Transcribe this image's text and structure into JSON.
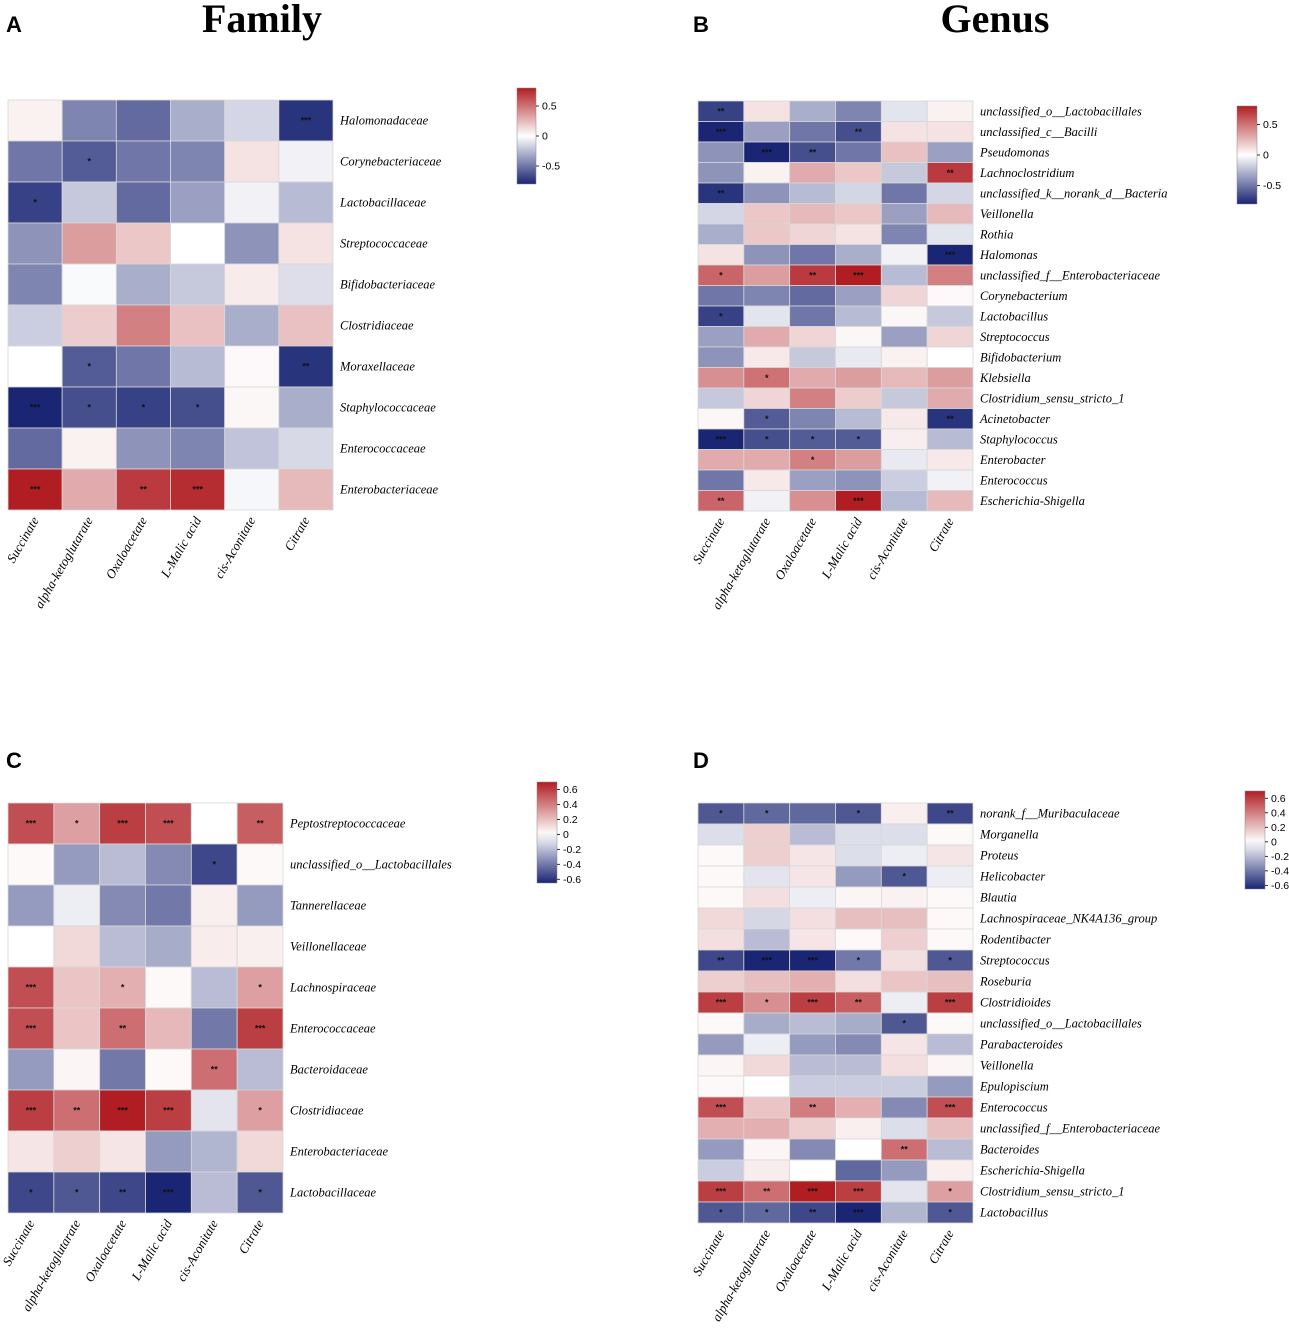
{
  "palette": {
    "low": "#1a2673",
    "mid": "#ffffff",
    "high": "#b01e23",
    "grid": "#d7d7d7"
  },
  "chart_data": [
    {
      "type": "heatmap",
      "panel": "A",
      "title": "Family",
      "columns": [
        "Succinate",
        "alpha-ketoglutarate",
        "Oxaloacetate",
        "L-Malic acid",
        "cis-Aconitate",
        "Citrate"
      ],
      "rows": [
        "Halomonadaceae",
        "Corynebacteriaceae",
        "Lactobacillaceae",
        "Streptococcaceae",
        "Bifidobacteriaceae",
        "Clostridiaceae",
        "Moraxellaceae",
        "Staphylococcaceae",
        "Enterococcaceae",
        "Enterobacteriaceae"
      ],
      "values": [
        [
          0.05,
          -0.45,
          -0.55,
          -0.3,
          -0.15,
          -0.75
        ],
        [
          -0.5,
          -0.6,
          -0.5,
          -0.45,
          0.1,
          -0.05
        ],
        [
          -0.7,
          -0.2,
          -0.55,
          -0.35,
          -0.05,
          -0.25
        ],
        [
          -0.4,
          0.35,
          0.2,
          0.0,
          -0.4,
          0.1
        ],
        [
          -0.45,
          -0.02,
          -0.3,
          -0.2,
          0.07,
          -0.12
        ],
        [
          -0.18,
          0.18,
          0.45,
          0.22,
          -0.3,
          0.22
        ],
        [
          0.0,
          -0.6,
          -0.5,
          -0.25,
          0.02,
          -0.75
        ],
        [
          -0.8,
          -0.65,
          -0.7,
          -0.65,
          0.03,
          -0.3
        ],
        [
          -0.55,
          0.05,
          -0.4,
          -0.45,
          -0.22,
          -0.14
        ],
        [
          0.8,
          0.3,
          0.7,
          0.75,
          -0.03,
          0.25
        ]
      ],
      "significance": [
        [
          "",
          "",
          "",
          "",
          "",
          "***"
        ],
        [
          "",
          "*",
          "",
          "",
          "",
          ""
        ],
        [
          "*",
          "",
          "",
          "",
          "",
          ""
        ],
        [
          "",
          "",
          "",
          "",
          "",
          ""
        ],
        [
          "",
          "",
          "",
          "",
          "",
          ""
        ],
        [
          "",
          "",
          "",
          "",
          "",
          ""
        ],
        [
          "",
          "*",
          "",
          "",
          "",
          "**"
        ],
        [
          "***",
          "*",
          "*",
          "*",
          "",
          ""
        ],
        [
          "",
          "",
          "",
          "",
          "",
          ""
        ],
        [
          "***",
          "",
          "**",
          "***",
          "",
          ""
        ]
      ],
      "colorbar": {
        "range": [
          -0.8,
          0.8
        ],
        "ticks": [
          "0.5",
          "0",
          "-0.5"
        ],
        "tick_values": [
          0.5,
          0,
          -0.5
        ]
      }
    },
    {
      "type": "heatmap",
      "panel": "B",
      "title": "Genus",
      "columns": [
        "Succinate",
        "alpha-ketoglutarate",
        "Oxaloacetate",
        "L-Malic acid",
        "cis-Aconitate",
        "Citrate"
      ],
      "rows": [
        "unclassified_o__Lactobacillales",
        "unclassified_c__Bacilli",
        "Pseudomonas",
        "Lachnoclostridium",
        "unclassified_k__norank_d__Bacteria",
        "Veillonella",
        "Rothia",
        "Halomonas",
        "unclassified_f__Enterobacteriaceae",
        "Corynebacterium",
        "Lactobacillus",
        "Streptococcus",
        "Bifidobacterium",
        "Klebsiella",
        "Clostridium_sensu_stricto_1",
        "Acinetobacter",
        "Staphylococcus",
        "Enterobacter",
        "Enterococcus",
        "Escherichia-Shigella"
      ],
      "values": [
        [
          -0.7,
          0.1,
          -0.3,
          -0.45,
          -0.1,
          0.05
        ],
        [
          -0.85,
          -0.35,
          -0.5,
          -0.65,
          0.1,
          0.1
        ],
        [
          -0.4,
          -0.8,
          -0.65,
          -0.5,
          0.22,
          -0.35
        ],
        [
          -0.4,
          0.05,
          0.3,
          0.2,
          -0.2,
          0.7
        ],
        [
          -0.75,
          -0.4,
          -0.25,
          -0.15,
          -0.5,
          -0.15
        ],
        [
          -0.15,
          0.2,
          0.25,
          0.2,
          -0.35,
          0.25
        ],
        [
          -0.3,
          0.2,
          0.15,
          0.1,
          -0.45,
          -0.1
        ],
        [
          0.1,
          -0.4,
          -0.5,
          -0.3,
          -0.05,
          -0.8
        ],
        [
          0.55,
          0.35,
          0.7,
          0.8,
          -0.25,
          0.45
        ],
        [
          -0.5,
          -0.45,
          -0.55,
          -0.35,
          0.15,
          0.02
        ],
        [
          -0.7,
          -0.1,
          -0.5,
          -0.25,
          0.03,
          -0.2
        ],
        [
          -0.35,
          0.3,
          0.15,
          0.03,
          -0.35,
          0.15
        ],
        [
          -0.4,
          0.08,
          -0.2,
          -0.08,
          0.05,
          0.0
        ],
        [
          0.4,
          0.5,
          0.3,
          0.35,
          0.25,
          0.35
        ],
        [
          -0.2,
          0.15,
          0.45,
          0.18,
          -0.2,
          0.3
        ],
        [
          0.03,
          -0.6,
          -0.45,
          -0.25,
          0.08,
          -0.75
        ],
        [
          -0.8,
          -0.65,
          -0.6,
          -0.6,
          0.06,
          -0.25
        ],
        [
          0.3,
          0.3,
          0.45,
          0.35,
          -0.08,
          0.08
        ],
        [
          -0.5,
          0.08,
          -0.35,
          -0.4,
          -0.18,
          -0.05
        ],
        [
          0.55,
          -0.05,
          0.4,
          0.85,
          -0.25,
          0.25
        ]
      ],
      "significance": [
        [
          "**",
          "",
          "",
          "",
          "",
          ""
        ],
        [
          "***",
          "",
          "",
          "**",
          "",
          ""
        ],
        [
          "",
          "***",
          "**",
          "",
          "",
          ""
        ],
        [
          "",
          "",
          "",
          "",
          "",
          "**"
        ],
        [
          "**",
          "",
          "",
          "",
          "",
          ""
        ],
        [
          "",
          "",
          "",
          "",
          "",
          ""
        ],
        [
          "",
          "",
          "",
          "",
          "",
          ""
        ],
        [
          "",
          "",
          "",
          "",
          "",
          "***"
        ],
        [
          "*",
          "",
          "**",
          "***",
          "",
          ""
        ],
        [
          "",
          "",
          "",
          "",
          "",
          ""
        ],
        [
          "*",
          "",
          "",
          "",
          "",
          ""
        ],
        [
          "",
          "",
          "",
          "",
          "",
          ""
        ],
        [
          "",
          "",
          "",
          "",
          "",
          ""
        ],
        [
          "",
          "*",
          "",
          "",
          "",
          ""
        ],
        [
          "",
          "",
          "",
          "",
          "",
          ""
        ],
        [
          "",
          "*",
          "",
          "",
          "",
          "**"
        ],
        [
          "***",
          "*",
          "*",
          "*",
          "",
          ""
        ],
        [
          "",
          "",
          "*",
          "",
          "",
          ""
        ],
        [
          "",
          "",
          "",
          "",
          "",
          ""
        ],
        [
          "**",
          "",
          "",
          "***",
          "",
          ""
        ]
      ],
      "colorbar": {
        "range": [
          -0.8,
          0.8
        ],
        "ticks": [
          "0.5",
          "0",
          "-0.5"
        ],
        "tick_values": [
          0.5,
          0,
          -0.5
        ]
      }
    },
    {
      "type": "heatmap",
      "panel": "C",
      "title": "",
      "columns": [
        "Succinate",
        "alpha-ketoglutarate",
        "Oxaloacetate",
        "L-Malic acid",
        "cis-Aconitate",
        "Citrate"
      ],
      "rows": [
        "Peptostreptococcaceae",
        "unclassified_o__Lactobacillales",
        "Tannerellaceae",
        "Veillonellaceae",
        "Lachnospiraceae",
        "Enterococcaceae",
        "Bacteroidaceae",
        "Clostridiaceae",
        "Enterobacteriaceae",
        "Lactobacillaceae"
      ],
      "values": [
        [
          0.55,
          0.3,
          0.6,
          0.55,
          0.0,
          0.5
        ],
        [
          0.02,
          -0.3,
          -0.2,
          -0.35,
          -0.55,
          0.02
        ],
        [
          -0.3,
          -0.05,
          -0.35,
          -0.4,
          0.05,
          -0.3
        ],
        [
          0.0,
          0.12,
          -0.2,
          -0.25,
          0.06,
          0.05
        ],
        [
          0.55,
          0.18,
          0.25,
          0.02,
          -0.2,
          0.3
        ],
        [
          0.55,
          0.18,
          0.45,
          0.22,
          -0.4,
          0.6
        ],
        [
          -0.3,
          0.03,
          -0.4,
          0.02,
          0.45,
          -0.2
        ],
        [
          0.6,
          0.45,
          0.7,
          0.6,
          -0.08,
          0.3
        ],
        [
          0.08,
          0.15,
          0.08,
          -0.3,
          -0.22,
          0.12
        ],
        [
          -0.55,
          -0.5,
          -0.55,
          -0.65,
          -0.2,
          -0.5
        ]
      ],
      "significance": [
        [
          "***",
          "*",
          "***",
          "***",
          "",
          "**"
        ],
        [
          "",
          "",
          "",
          "",
          "*",
          ""
        ],
        [
          "",
          "",
          "",
          "",
          "",
          ""
        ],
        [
          "",
          "",
          "",
          "",
          "",
          ""
        ],
        [
          "***",
          "",
          "*",
          "",
          "",
          "*"
        ],
        [
          "***",
          "",
          "**",
          "",
          "",
          "***"
        ],
        [
          "",
          "",
          "",
          "",
          "**",
          ""
        ],
        [
          "***",
          "**",
          "***",
          "***",
          "",
          "*"
        ],
        [
          "",
          "",
          "",
          "",
          "",
          ""
        ],
        [
          "*",
          "*",
          "**",
          "***",
          "",
          "*"
        ]
      ],
      "colorbar": {
        "range": [
          -0.65,
          0.7
        ],
        "ticks": [
          "0.6",
          "0.4",
          "0.2",
          "0",
          "-0.2",
          "-0.4",
          "-0.6"
        ],
        "tick_values": [
          0.6,
          0.4,
          0.2,
          0,
          -0.2,
          -0.4,
          -0.6
        ]
      }
    },
    {
      "type": "heatmap",
      "panel": "D",
      "title": "",
      "columns": [
        "Succinate",
        "alpha-ketoglutarate",
        "Oxaloacetate",
        "L-Malic acid",
        "cis-Aconitate",
        "Citrate"
      ],
      "rows": [
        "norank_f__Muribaculaceae",
        "Morganella",
        "Proteus",
        "Helicobacter",
        "Blautia",
        "Lachnospiraceae_NK4A136_group",
        "Rodentibacter",
        "Streptococcus",
        "Roseburia",
        "Clostridioides",
        "unclassified_o__Lactobacillales",
        "Parabacteroides",
        "Veillonella",
        "Epulopiscium",
        "Enterococcus",
        "unclassified_f__Enterobacteriaceae",
        "Bacteroides",
        "Escherichia-Shigella",
        "Clostridium_sensu_stricto_1",
        "Lactobacillus"
      ],
      "values": [
        [
          -0.5,
          -0.45,
          -0.45,
          -0.5,
          0.05,
          -0.55
        ],
        [
          -0.1,
          0.15,
          -0.2,
          -0.1,
          -0.1,
          0.02
        ],
        [
          0.02,
          0.15,
          0.08,
          -0.1,
          -0.05,
          0.08
        ],
        [
          0.02,
          -0.08,
          0.08,
          -0.3,
          -0.5,
          -0.05
        ],
        [
          0.02,
          0.1,
          -0.05,
          0.03,
          0.04,
          0.02
        ],
        [
          0.12,
          -0.12,
          0.1,
          0.2,
          0.2,
          0.02
        ],
        [
          0.1,
          -0.2,
          0.08,
          0.02,
          0.15,
          0.02
        ],
        [
          -0.55,
          -0.65,
          -0.65,
          -0.4,
          0.1,
          -0.5
        ],
        [
          0.15,
          0.2,
          0.25,
          0.1,
          0.18,
          0.2
        ],
        [
          0.6,
          0.35,
          0.6,
          0.5,
          -0.05,
          0.6
        ],
        [
          0.02,
          -0.25,
          -0.2,
          -0.25,
          -0.5,
          0.02
        ],
        [
          -0.3,
          -0.05,
          -0.3,
          -0.35,
          0.08,
          -0.2
        ],
        [
          0.03,
          0.12,
          -0.2,
          -0.2,
          0.1,
          0.03
        ],
        [
          0.02,
          0.0,
          -0.15,
          -0.15,
          -0.15,
          -0.3
        ],
        [
          0.55,
          0.18,
          0.4,
          0.25,
          -0.35,
          0.55
        ],
        [
          0.25,
          0.25,
          0.15,
          0.05,
          -0.1,
          0.2
        ],
        [
          -0.3,
          0.03,
          -0.35,
          0.0,
          0.45,
          -0.2
        ],
        [
          -0.15,
          0.06,
          0.0,
          -0.45,
          -0.3,
          0.05
        ],
        [
          0.6,
          0.45,
          0.7,
          0.6,
          -0.08,
          0.3
        ],
        [
          -0.5,
          -0.45,
          -0.55,
          -0.65,
          -0.22,
          -0.5
        ]
      ],
      "significance": [
        [
          "*",
          "*",
          "",
          "*",
          "",
          "**"
        ],
        [
          "",
          "",
          "",
          "",
          "",
          ""
        ],
        [
          "",
          "",
          "",
          "",
          "",
          ""
        ],
        [
          "",
          "",
          "",
          "",
          "*",
          ""
        ],
        [
          "",
          "",
          "",
          "",
          "",
          ""
        ],
        [
          "",
          "",
          "",
          "",
          "",
          ""
        ],
        [
          "",
          "",
          "",
          "",
          "",
          ""
        ],
        [
          "**",
          "***",
          "***",
          "*",
          "",
          "*"
        ],
        [
          "",
          "",
          "",
          "",
          "",
          ""
        ],
        [
          "***",
          "*",
          "***",
          "**",
          "",
          "***"
        ],
        [
          "",
          "",
          "",
          "",
          "*",
          ""
        ],
        [
          "",
          "",
          "",
          "",
          "",
          ""
        ],
        [
          "",
          "",
          "",
          "",
          "",
          ""
        ],
        [
          "",
          "",
          "",
          "",
          "",
          ""
        ],
        [
          "***",
          "",
          "**",
          "",
          "",
          "***"
        ],
        [
          "",
          "",
          "",
          "",
          "",
          ""
        ],
        [
          "",
          "",
          "",
          "",
          "**",
          ""
        ],
        [
          "",
          "",
          "",
          "",
          "",
          ""
        ],
        [
          "***",
          "**",
          "***",
          "***",
          "",
          "*"
        ],
        [
          "*",
          "*",
          "**",
          "***",
          "",
          "*"
        ]
      ],
      "colorbar": {
        "range": [
          -0.65,
          0.7
        ],
        "ticks": [
          "0.6",
          "0.4",
          "0.2",
          "0",
          "-0.2",
          "-0.4",
          "-0.6"
        ],
        "tick_values": [
          0.6,
          0.4,
          0.2,
          0,
          -0.2,
          -0.4,
          -0.6
        ]
      }
    }
  ]
}
